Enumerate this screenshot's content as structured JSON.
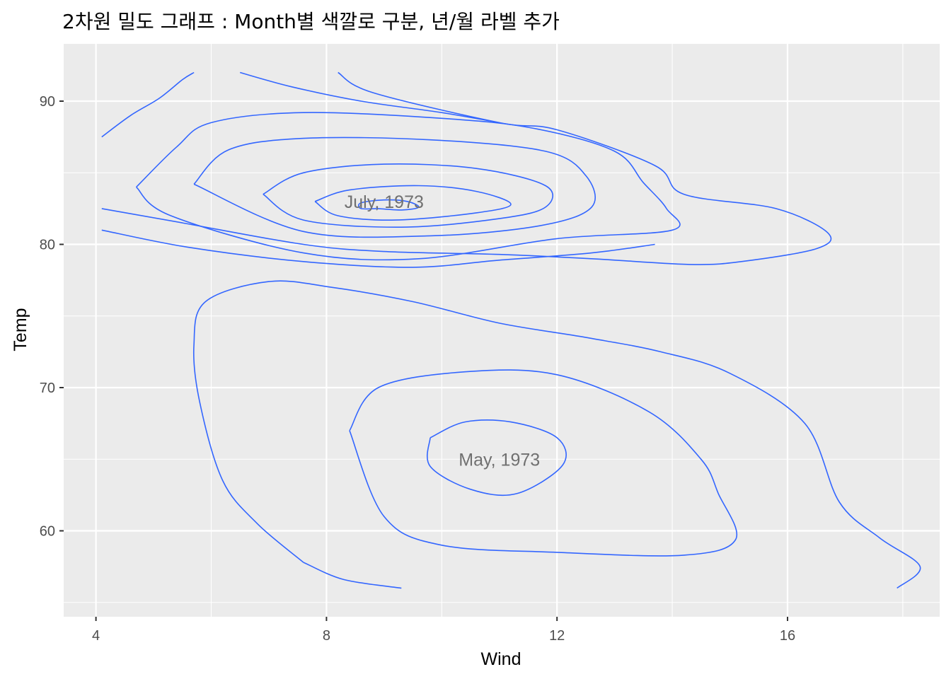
{
  "chart_data": {
    "type": "contour",
    "title": "2차원 밀도 그래프 : Month별 색깔로 구분, 년/월 라벨 추가",
    "xlabel": "Wind",
    "ylabel": "Temp",
    "xlim": [
      3.44,
      18.64
    ],
    "ylim": [
      54.0,
      94.0
    ],
    "x_ticks": [
      4,
      8,
      12,
      16
    ],
    "x_tick_labels": [
      "4",
      "8",
      "12",
      "16"
    ],
    "y_ticks": [
      60,
      70,
      80,
      90
    ],
    "y_tick_labels": [
      "60",
      "70",
      "80",
      "90"
    ],
    "grid": true,
    "legend": "none",
    "line_color": "#3366FF",
    "panel_color": "#EBEBEB",
    "annotations": [
      {
        "label": "July, 1973",
        "x": 9.0,
        "y": 83.0
      },
      {
        "label": "May, 1973",
        "x": 11.0,
        "y": 65.0
      }
    ],
    "contours": [
      {
        "group": "July",
        "points": [
          [
            8.9,
            82.5
          ],
          [
            9.3,
            82.4
          ],
          [
            9.6,
            82.6
          ],
          [
            9.4,
            83.0
          ],
          [
            9.0,
            83.1
          ],
          [
            8.6,
            82.9
          ],
          [
            8.6,
            82.5
          ],
          [
            8.9,
            82.5
          ]
        ]
      },
      {
        "group": "July",
        "points": [
          [
            7.8,
            83.0
          ],
          [
            8.4,
            83.8
          ],
          [
            9.6,
            84.1
          ],
          [
            10.6,
            83.7
          ],
          [
            11.2,
            82.8
          ],
          [
            10.6,
            82.2
          ],
          [
            9.2,
            81.7
          ],
          [
            8.2,
            82.0
          ],
          [
            7.8,
            83.0
          ]
        ]
      },
      {
        "group": "July",
        "points": [
          [
            6.9,
            83.5
          ],
          [
            7.6,
            85.0
          ],
          [
            9.0,
            85.6
          ],
          [
            10.6,
            85.3
          ],
          [
            11.8,
            84.1
          ],
          [
            11.8,
            82.6
          ],
          [
            11.0,
            81.8
          ],
          [
            9.3,
            81.2
          ],
          [
            7.6,
            81.7
          ],
          [
            6.9,
            83.5
          ]
        ]
      },
      {
        "group": "July",
        "points": [
          [
            5.7,
            84.2
          ],
          [
            6.3,
            86.6
          ],
          [
            7.6,
            87.4
          ],
          [
            9.8,
            87.3
          ],
          [
            11.8,
            86.5
          ],
          [
            12.5,
            84.8
          ],
          [
            12.6,
            82.6
          ],
          [
            11.7,
            81.3
          ],
          [
            9.8,
            80.6
          ],
          [
            7.6,
            80.9
          ],
          [
            5.7,
            84.2
          ]
        ]
      },
      {
        "group": "July",
        "points": [
          [
            4.7,
            84.0
          ],
          [
            5.4,
            86.8
          ],
          [
            6.0,
            88.5
          ],
          [
            7.6,
            89.2
          ],
          [
            10.0,
            88.8
          ],
          [
            11.6,
            88.1
          ],
          [
            13.0,
            86.5
          ],
          [
            13.5,
            84.3
          ],
          [
            13.9,
            82.5
          ],
          [
            14.0,
            81.0
          ],
          [
            12.0,
            80.4
          ],
          [
            9.6,
            79.0
          ],
          [
            7.6,
            79.4
          ],
          [
            5.3,
            82.0
          ],
          [
            4.7,
            84.0
          ]
        ]
      },
      {
        "group": "July",
        "points": [
          [
            4.1,
            82.5
          ],
          [
            5.5,
            81.5
          ],
          [
            7.6,
            80.0
          ],
          [
            9.0,
            79.5
          ],
          [
            11.0,
            79.3
          ],
          [
            12.6,
            79.0
          ],
          [
            14.3,
            78.6
          ],
          [
            15.2,
            78.8
          ],
          [
            16.5,
            79.7
          ],
          [
            16.7,
            80.8
          ],
          [
            15.8,
            82.5
          ],
          [
            14.2,
            83.5
          ],
          [
            13.7,
            85.5
          ],
          [
            12.0,
            88.0
          ],
          [
            11.0,
            88.5
          ],
          [
            8.8,
            90.6
          ],
          [
            8.2,
            92.0
          ]
        ]
      },
      {
        "group": "July",
        "points": [
          [
            4.1,
            81.0
          ],
          [
            5.6,
            79.8
          ],
          [
            7.6,
            78.8
          ],
          [
            9.5,
            78.4
          ],
          [
            11.0,
            78.9
          ],
          [
            12.6,
            79.4
          ],
          [
            13.7,
            80.0
          ]
        ]
      },
      {
        "group": "July",
        "points": [
          [
            4.1,
            87.5
          ],
          [
            4.6,
            89.0
          ],
          [
            5.1,
            90.2
          ],
          [
            5.5,
            91.5
          ],
          [
            5.7,
            92.0
          ]
        ]
      },
      {
        "group": "July",
        "points": [
          [
            6.5,
            92.0
          ],
          [
            7.4,
            91.0
          ],
          [
            8.6,
            90.0
          ],
          [
            10.0,
            89.2
          ],
          [
            11.0,
            88.5
          ]
        ]
      },
      {
        "group": "May",
        "points": [
          [
            9.8,
            66.5
          ],
          [
            10.4,
            67.6
          ],
          [
            11.2,
            67.6
          ],
          [
            12.0,
            66.5
          ],
          [
            12.1,
            64.6
          ],
          [
            11.3,
            62.6
          ],
          [
            10.5,
            62.9
          ],
          [
            9.8,
            64.5
          ],
          [
            9.8,
            66.5
          ]
        ]
      },
      {
        "group": "May",
        "points": [
          [
            8.4,
            67.0
          ],
          [
            8.9,
            70.0
          ],
          [
            10.4,
            71.1
          ],
          [
            12.0,
            70.9
          ],
          [
            13.6,
            68.3
          ],
          [
            14.5,
            65.0
          ],
          [
            14.8,
            62.6
          ],
          [
            15.1,
            59.4
          ],
          [
            14.2,
            58.3
          ],
          [
            12.0,
            58.5
          ],
          [
            10.0,
            59.0
          ],
          [
            9.0,
            61.0
          ],
          [
            8.4,
            67.0
          ]
        ]
      },
      {
        "group": "May",
        "points": [
          [
            7.6,
            57.8
          ],
          [
            6.8,
            60.5
          ],
          [
            6.2,
            63.5
          ],
          [
            5.8,
            69.0
          ],
          [
            5.7,
            73.0
          ],
          [
            5.9,
            76.0
          ],
          [
            7.0,
            77.4
          ],
          [
            8.1,
            77.0
          ],
          [
            9.5,
            76.0
          ],
          [
            11.0,
            74.5
          ],
          [
            12.5,
            73.5
          ],
          [
            13.8,
            72.5
          ],
          [
            15.0,
            71.0
          ],
          [
            16.3,
            67.5
          ],
          [
            16.9,
            62.0
          ],
          [
            17.6,
            59.5
          ],
          [
            18.3,
            57.5
          ],
          [
            17.9,
            56.0
          ]
        ]
      },
      {
        "group": "May",
        "points": [
          [
            7.6,
            57.8
          ],
          [
            8.3,
            56.6
          ],
          [
            9.3,
            56.0
          ]
        ]
      }
    ]
  }
}
